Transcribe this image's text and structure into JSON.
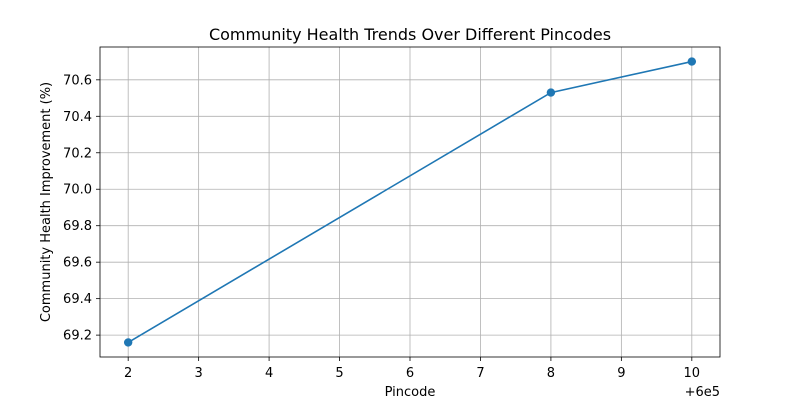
{
  "chart_data": {
    "type": "line",
    "title": "Community Health Trends Over Different Pincodes",
    "xlabel": "Pincode",
    "ylabel": "Community Health Improvement (%)",
    "x_offset_label": "+6e5",
    "x_ticks": [
      2,
      3,
      4,
      5,
      6,
      7,
      8,
      9,
      10
    ],
    "y_ticks": [
      69.2,
      69.4,
      69.6,
      69.8,
      70.0,
      70.2,
      70.4,
      70.6
    ],
    "xlim": [
      1.6,
      10.4
    ],
    "ylim": [
      69.08,
      70.78
    ],
    "grid": true,
    "series": [
      {
        "color": "#1f77b4",
        "x": [
          600002,
          600008,
          600010
        ],
        "y": [
          69.16,
          70.53,
          70.7
        ]
      }
    ]
  }
}
